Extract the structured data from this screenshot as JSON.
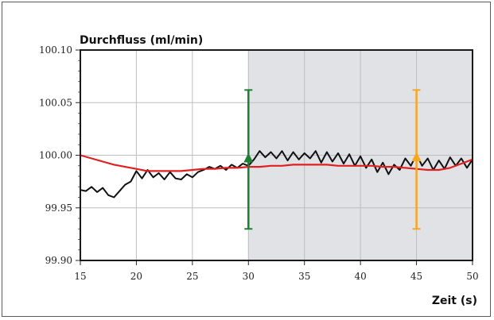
{
  "chart_data": {
    "type": "line",
    "ylabel": "Durchfluss (ml/min)",
    "xlabel": "Zeit (s)",
    "xlim": [
      15,
      50
    ],
    "ylim": [
      99.9,
      100.1
    ],
    "x_ticks": [
      "15",
      "20",
      "25",
      "30",
      "35",
      "40",
      "45",
      "50"
    ],
    "y_ticks": [
      "100.10",
      "100.05",
      "100.00",
      "99.95",
      "99.90"
    ],
    "grid": true,
    "shaded_region": {
      "x_from": 30,
      "x_to": 50,
      "color": "#e1e2e6"
    },
    "series": [
      {
        "color": "#111111",
        "x": [
          15,
          15.5,
          16,
          16.5,
          17,
          17.5,
          18,
          18.5,
          19,
          19.5,
          20,
          20.5,
          21,
          21.5,
          22,
          22.5,
          23,
          23.5,
          24,
          24.5,
          25,
          25.5,
          26,
          26.5,
          27,
          27.5,
          28,
          28.5,
          29,
          29.5,
          30,
          30.5,
          31,
          31.5,
          32,
          32.5,
          33,
          33.5,
          34,
          34.5,
          35,
          35.5,
          36,
          36.5,
          37,
          37.5,
          38,
          38.5,
          39,
          39.5,
          40,
          40.5,
          41,
          41.5,
          42,
          42.5,
          43,
          43.5,
          44,
          44.5,
          45,
          45.5,
          46,
          46.5,
          47,
          47.5,
          48,
          48.5,
          49,
          49.5,
          50
        ],
        "values": [
          99.967,
          99.966,
          99.97,
          99.965,
          99.969,
          99.962,
          99.96,
          99.966,
          99.972,
          99.975,
          99.985,
          99.978,
          99.986,
          99.979,
          99.983,
          99.977,
          99.984,
          99.978,
          99.977,
          99.982,
          99.979,
          99.984,
          99.986,
          99.989,
          99.987,
          99.99,
          99.986,
          99.991,
          99.988,
          99.992,
          99.99,
          99.996,
          100.004,
          99.998,
          100.003,
          99.997,
          100.004,
          99.995,
          100.003,
          99.996,
          100.002,
          99.997,
          100.004,
          99.993,
          100.003,
          99.994,
          100.002,
          99.992,
          100.001,
          99.99,
          99.999,
          99.988,
          99.996,
          99.984,
          99.993,
          99.982,
          99.991,
          99.986,
          99.997,
          99.99,
          100.001,
          99.99,
          99.997,
          99.986,
          99.995,
          99.987,
          99.998,
          99.99,
          99.997,
          99.988,
          99.996
        ]
      },
      {
        "color": "#e02020",
        "x": [
          15,
          16,
          17,
          18,
          19,
          20,
          21,
          22,
          23,
          24,
          25,
          26,
          27,
          28,
          29,
          30,
          31,
          32,
          33,
          34,
          35,
          36,
          37,
          38,
          39,
          40,
          41,
          42,
          43,
          44,
          45,
          46,
          47,
          48,
          49,
          50
        ],
        "values": [
          100.0,
          99.997,
          99.994,
          99.991,
          99.989,
          99.987,
          99.985,
          99.985,
          99.985,
          99.985,
          99.986,
          99.987,
          99.987,
          99.988,
          99.988,
          99.989,
          99.989,
          99.99,
          99.99,
          99.991,
          99.991,
          99.991,
          99.991,
          99.99,
          99.99,
          99.99,
          99.99,
          99.989,
          99.989,
          99.988,
          99.987,
          99.986,
          99.986,
          99.988,
          99.992,
          99.996
        ]
      }
    ],
    "error_bars": [
      {
        "x": 30,
        "y": 99.997,
        "low": 99.93,
        "high": 100.062,
        "color": "#1e7e34"
      },
      {
        "x": 45,
        "y": 99.998,
        "low": 99.93,
        "high": 100.062,
        "color": "#f5a623"
      }
    ]
  }
}
